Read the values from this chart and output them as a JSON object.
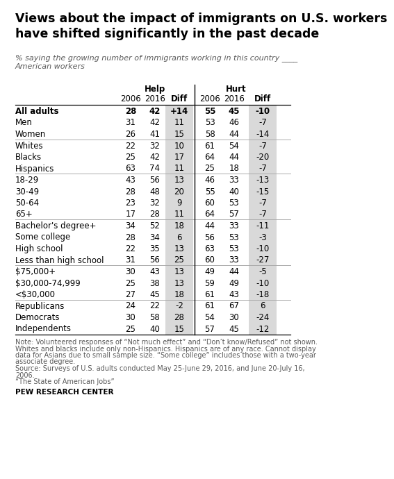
{
  "title": "Views about the impact of immigrants on U.S. workers\nhave shifted significantly in the past decade",
  "subtitle": "% saying the growing number of immigrants working in this country ____\nAmerican workers",
  "col_headers_top": [
    "Help",
    "Hurt"
  ],
  "col_headers_sub": [
    "2006",
    "2016",
    "Diff",
    "2006",
    "2016",
    "Diff"
  ],
  "rows": [
    {
      "label": "All adults",
      "bold": true,
      "separator_before": false,
      "data": [
        "28",
        "42",
        "+14",
        "55",
        "45",
        "-10"
      ]
    },
    {
      "label": "Men",
      "bold": false,
      "separator_before": false,
      "data": [
        "31",
        "42",
        "11",
        "53",
        "46",
        "-7"
      ]
    },
    {
      "label": "Women",
      "bold": false,
      "separator_before": false,
      "data": [
        "26",
        "41",
        "15",
        "58",
        "44",
        "-14"
      ]
    },
    {
      "label": "Whites",
      "bold": false,
      "separator_before": true,
      "data": [
        "22",
        "32",
        "10",
        "61",
        "54",
        "-7"
      ]
    },
    {
      "label": "Blacks",
      "bold": false,
      "separator_before": false,
      "data": [
        "25",
        "42",
        "17",
        "64",
        "44",
        "-20"
      ]
    },
    {
      "label": "Hispanics",
      "bold": false,
      "separator_before": false,
      "data": [
        "63",
        "74",
        "11",
        "25",
        "18",
        "-7"
      ]
    },
    {
      "label": "18-29",
      "bold": false,
      "separator_before": true,
      "data": [
        "43",
        "56",
        "13",
        "46",
        "33",
        "-13"
      ]
    },
    {
      "label": "30-49",
      "bold": false,
      "separator_before": false,
      "data": [
        "28",
        "48",
        "20",
        "55",
        "40",
        "-15"
      ]
    },
    {
      "label": "50-64",
      "bold": false,
      "separator_before": false,
      "data": [
        "23",
        "32",
        "9",
        "60",
        "53",
        "-7"
      ]
    },
    {
      "label": "65+",
      "bold": false,
      "separator_before": false,
      "data": [
        "17",
        "28",
        "11",
        "64",
        "57",
        "-7"
      ]
    },
    {
      "label": "Bachelor's degree+",
      "bold": false,
      "separator_before": true,
      "data": [
        "34",
        "52",
        "18",
        "44",
        "33",
        "-11"
      ]
    },
    {
      "label": "Some college",
      "bold": false,
      "separator_before": false,
      "data": [
        "28",
        "34",
        "6",
        "56",
        "53",
        "-3"
      ]
    },
    {
      "label": "High school",
      "bold": false,
      "separator_before": false,
      "data": [
        "22",
        "35",
        "13",
        "63",
        "53",
        "-10"
      ]
    },
    {
      "label": "Less than high school",
      "bold": false,
      "separator_before": false,
      "data": [
        "31",
        "56",
        "25",
        "60",
        "33",
        "-27"
      ]
    },
    {
      "label": "$75,000+",
      "bold": false,
      "separator_before": true,
      "data": [
        "30",
        "43",
        "13",
        "49",
        "44",
        "-5"
      ]
    },
    {
      "label": "$30,000-74,999",
      "bold": false,
      "separator_before": false,
      "data": [
        "25",
        "38",
        "13",
        "59",
        "49",
        "-10"
      ]
    },
    {
      "label": "<$30,000",
      "bold": false,
      "separator_before": false,
      "data": [
        "27",
        "45",
        "18",
        "61",
        "43",
        "-18"
      ]
    },
    {
      "label": "Republicans",
      "bold": false,
      "separator_before": true,
      "data": [
        "24",
        "22",
        "-2",
        "61",
        "67",
        "6"
      ]
    },
    {
      "label": "Democrats",
      "bold": false,
      "separator_before": false,
      "data": [
        "30",
        "58",
        "28",
        "54",
        "30",
        "-24"
      ]
    },
    {
      "label": "Independents",
      "bold": false,
      "separator_before": false,
      "data": [
        "25",
        "40",
        "15",
        "57",
        "45",
        "-12"
      ]
    }
  ],
  "note_lines": [
    "Note: Volunteered responses of “Not much effect” and “Don’t know/Refused” not shown.",
    "Whites and blacks include only non-Hispanics. Hispanics are of any race. Cannot display",
    "data for Asians due to small sample size. “Some college” includes those with a two-year",
    "associate degree.",
    "Source: Surveys of U.S. adults conducted May 25-June 29, 2016, and June 20-July 16,",
    "2006.",
    "“The State of American Jobs”"
  ],
  "source_label": "PEW RESEARCH CENTER",
  "bg_color": "#ffffff",
  "diff_col_bg": "#d9d9d9",
  "text_color": "#000000",
  "note_color": "#595959",
  "title_fontsize": 12.5,
  "subtitle_fontsize": 8.0,
  "header_fontsize": 8.5,
  "data_fontsize": 8.5,
  "note_fontsize": 7.0
}
